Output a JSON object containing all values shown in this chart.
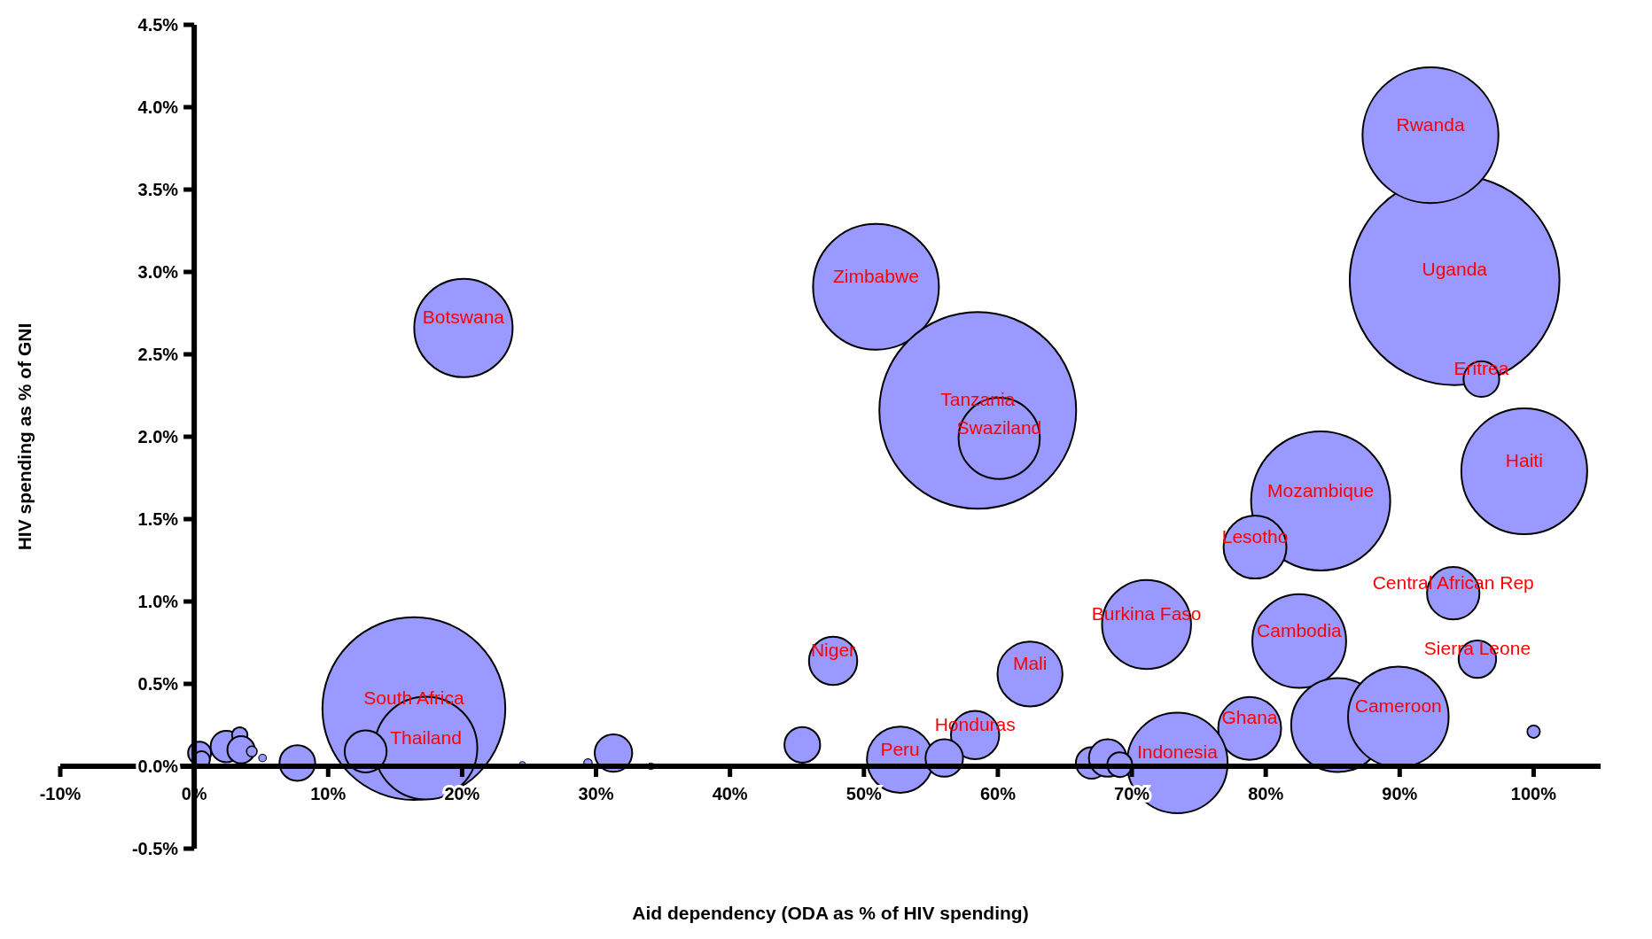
{
  "chart_data": {
    "type": "bubble",
    "xlabel": "Aid dependency (ODA as % of HIV spending)",
    "ylabel": "HIV spending as % of GNI",
    "color": "#9999ff",
    "x": [
      94.1,
      92.3,
      96.1,
      99.3,
      84.1,
      79.2,
      94.0,
      95.8,
      71.1,
      82.5,
      62.4,
      47.7,
      50.9,
      58.5,
      60.1,
      20.1,
      16.4,
      17.3,
      12.8,
      52.7,
      58.3,
      78.8,
      85.4,
      89.9,
      73.4,
      100.0,
      45.4,
      56.0,
      67.0,
      68.2,
      69.1,
      7.7,
      31.3,
      29.4,
      24.5,
      34.1,
      0.4,
      0.55,
      2.4,
      3.4,
      3.5,
      4.3,
      5.1
    ],
    "values": [
      2.95,
      3.83,
      2.35,
      1.79,
      1.61,
      1.33,
      1.05,
      0.65,
      0.86,
      0.76,
      0.56,
      0.64,
      2.91,
      2.16,
      1.99,
      2.66,
      0.35,
      0.11,
      0.09,
      0.04,
      0.19,
      0.23,
      0.25,
      0.3,
      0.02,
      0.21,
      0.13,
      0.05,
      0.02,
      0.05,
      0.01,
      0.02,
      0.08,
      0.02,
      0.01,
      0.0,
      0.08,
      0.04,
      0.12,
      0.19,
      0.1,
      0.09,
      0.05
    ],
    "sizes": [
      1,
      0.42,
      0.029,
      0.36,
      0.44,
      0.09,
      0.0625,
      0.032,
      0.18,
      0.2,
      0.096,
      0.053,
      0.36,
      0.88,
      0.15,
      0.22,
      0.76,
      0.24,
      0.04,
      0.1,
      0.053,
      0.09,
      0.2,
      0.23,
      0.23,
      0.0036,
      0.029,
      0.032,
      0.0225,
      0.032,
      0.014,
      0.029,
      0.032,
      0.0016,
      0.0009,
      0.001,
      0.012,
      0.0064,
      0.0225,
      0.0055,
      0.017,
      0.0025,
      0.0013
    ],
    "xlim": [
      -10,
      105
    ],
    "xticks": [
      {
        "value": -10,
        "label": "-10%"
      },
      {
        "value": 0,
        "label": "0%"
      },
      {
        "value": 10,
        "label": "10%"
      },
      {
        "value": 20,
        "label": "20%"
      },
      {
        "value": 30,
        "label": "30%"
      },
      {
        "value": 40,
        "label": "40%"
      },
      {
        "value": 50,
        "label": "50%"
      },
      {
        "value": 60,
        "label": "60%"
      },
      {
        "value": 70,
        "label": "70%"
      },
      {
        "value": 80,
        "label": "80%"
      },
      {
        "value": 90,
        "label": "90%"
      },
      {
        "value": 100,
        "label": "100%"
      }
    ],
    "ylim": [
      -0.5,
      4.5
    ],
    "yticks": [
      {
        "value": -0.5,
        "label": "-0.5%"
      },
      {
        "value": 0,
        "label": "0.0%"
      },
      {
        "value": 0.5,
        "label": "0.5%"
      },
      {
        "value": 1,
        "label": "1.0%"
      },
      {
        "value": 1.5,
        "label": "1.5%"
      },
      {
        "value": 2,
        "label": "2.0%"
      },
      {
        "value": 2.5,
        "label": "2.5%"
      },
      {
        "value": 3,
        "label": "3.0%"
      },
      {
        "value": 3.5,
        "label": "3.5%"
      },
      {
        "value": 4,
        "label": "4.0%"
      },
      {
        "value": 4.5,
        "label": "4.5%"
      }
    ],
    "annotations": [
      {
        "text": "Rwanda",
        "x": 92.3,
        "y": 3.83
      },
      {
        "text": "Uganda",
        "x": 94.1,
        "y": 2.95
      },
      {
        "text": "Eritrea",
        "x": 96.1,
        "y": 2.35
      },
      {
        "text": "Haiti",
        "x": 99.3,
        "y": 1.79
      },
      {
        "text": "Mozambique",
        "x": 84.1,
        "y": 1.61
      },
      {
        "text": "Lesotho",
        "x": 79.2,
        "y": 1.33
      },
      {
        "text": "Central African Rep",
        "x": 94.0,
        "y": 1.05
      },
      {
        "text": "Sierra Leone",
        "x": 95.8,
        "y": 0.65
      },
      {
        "text": "Burkina Faso",
        "x": 71.1,
        "y": 0.86
      },
      {
        "text": "Cambodia",
        "x": 82.5,
        "y": 0.76
      },
      {
        "text": "Mali",
        "x": 62.4,
        "y": 0.56
      },
      {
        "text": "Niger",
        "x": 47.7,
        "y": 0.64
      },
      {
        "text": "Zimbabwe",
        "x": 50.9,
        "y": 2.91
      },
      {
        "text": "Tanzania",
        "x": 58.5,
        "y": 2.16
      },
      {
        "text": "Swaziland",
        "x": 60.1,
        "y": 1.99
      },
      {
        "text": "Botswana",
        "x": 20.1,
        "y": 2.66
      },
      {
        "text": "South Africa",
        "x": 16.4,
        "y": 0.35
      },
      {
        "text": "Thailand",
        "x": 17.3,
        "y": 0.11
      },
      {
        "text": "Peru",
        "x": 52.7,
        "y": 0.04
      },
      {
        "text": "Honduras",
        "x": 58.3,
        "y": 0.19
      },
      {
        "text": "Ghana",
        "x": 78.8,
        "y": 0.23
      },
      {
        "text": "Cameroon",
        "x": 89.9,
        "y": 0.3
      },
      {
        "text": "Indonesia",
        "x": 73.4,
        "y": 0.02
      }
    ]
  }
}
